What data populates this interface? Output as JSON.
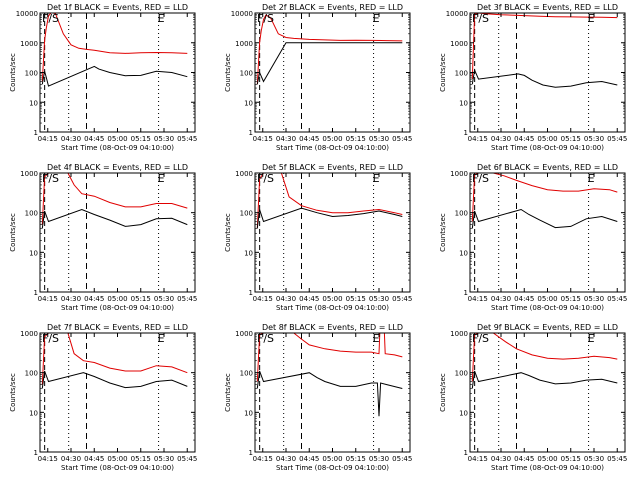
{
  "chart_data": [
    {
      "type": "line",
      "title": "Det 1f BLACK = Events, RED = LLD",
      "xlabel": "Start Time (08-Oct-09 04:10:00)",
      "ylabel": "Counts/sec",
      "marker_left": "F/S",
      "marker_right": "E",
      "ylim": [
        1,
        10000
      ],
      "y_scale": "log",
      "xlim": [
        "04:10:00",
        "05:50:00"
      ],
      "x_ticks": [
        "04:15",
        "04:30",
        "04:45",
        "05:00",
        "05:15",
        "05:30",
        "05:45"
      ],
      "y_ticks": [
        "1",
        "10",
        "100",
        "1000",
        "10000"
      ],
      "series": [
        {
          "color": "#e00000",
          "x": [
            "04:11:30",
            "04:13:00",
            "04:14:00",
            "04:15:30",
            "04:17:00",
            "04:18:30",
            "04:20:00",
            "04:25:00",
            "04:30:00",
            "04:35:00",
            "04:40:00",
            "04:45:00",
            "04:55:00",
            "05:05:00",
            "05:15:00",
            "05:25:00",
            "05:35:00",
            "05:45:00"
          ],
          "values": [
            50,
            1200,
            3000,
            8000,
            10000,
            10000,
            9500,
            2000,
            850,
            650,
            600,
            560,
            460,
            440,
            460,
            470,
            460,
            440
          ]
        },
        {
          "color": "#000000",
          "x": [
            "04:11:30",
            "04:13:00",
            "04:14:00",
            "04:15:30",
            "04:45:00",
            "04:48:00",
            "04:55:00",
            "05:05:00",
            "05:15:00",
            "05:25:00",
            "05:35:00",
            "05:45:00"
          ],
          "values": [
            40,
            110,
            70,
            35,
            160,
            130,
            100,
            78,
            80,
            110,
            100,
            72
          ]
        }
      ]
    },
    {
      "type": "line",
      "title": "Det 2f BLACK = Events, RED = LLD",
      "xlabel": "Start Time (08-Oct-09 04:10:00)",
      "ylabel": "Counts/sec",
      "marker_left": "F/S",
      "marker_right": "E",
      "ylim": [
        1,
        10000
      ],
      "y_scale": "log",
      "xlim": [
        "04:10:00",
        "05:50:00"
      ],
      "x_ticks": [
        "04:15",
        "04:30",
        "04:45",
        "05:00",
        "05:15",
        "05:30",
        "05:45"
      ],
      "y_ticks": [
        "1",
        "10",
        "100",
        "1000",
        "10000"
      ],
      "series": [
        {
          "color": "#e00000",
          "x": [
            "04:11:30",
            "04:13:00",
            "04:14:00",
            "04:15:30",
            "04:17:00",
            "04:20:00",
            "04:25:00",
            "04:30:00",
            "04:35:00",
            "04:45:00",
            "04:55:00",
            "05:05:00",
            "05:15:00",
            "05:25:00",
            "05:35:00",
            "05:45:00"
          ],
          "values": [
            40,
            1000,
            2500,
            6000,
            8500,
            7000,
            2000,
            1500,
            1400,
            1300,
            1250,
            1200,
            1220,
            1200,
            1180,
            1150
          ]
        },
        {
          "color": "#000000",
          "x": [
            "04:11:30",
            "04:13:00",
            "04:15:30",
            "04:30:00",
            "04:35:00",
            "04:45:00",
            "04:55:00",
            "05:05:00",
            "05:15:00",
            "05:25:00",
            "05:35:00",
            "05:45:00"
          ],
          "values": [
            40,
            100,
            50,
            1000,
            1000,
            1000,
            1000,
            1000,
            1000,
            1000,
            1000,
            1000
          ]
        }
      ]
    },
    {
      "type": "line",
      "title": "Det 3f BLACK = Events, RED = LLD",
      "xlabel": "Start Time (08-Oct-09 04:10:00)",
      "ylabel": "Counts/sec",
      "marker_left": "F/S",
      "marker_right": "E",
      "ylim": [
        1,
        10000
      ],
      "y_scale": "log",
      "xlim": [
        "04:10:00",
        "05:50:00"
      ],
      "x_ticks": [
        "04:15",
        "04:30",
        "04:45",
        "05:00",
        "05:15",
        "05:30",
        "05:45"
      ],
      "y_ticks": [
        "1",
        "10",
        "100",
        "1000",
        "10000"
      ],
      "series": [
        {
          "color": "#e00000",
          "x": [
            "04:11:30",
            "04:13:00",
            "04:15:30",
            "04:20:00",
            "04:30:00",
            "04:45:00",
            "04:55:00",
            "05:05:00",
            "05:15:00",
            "05:25:00",
            "05:35:00",
            "05:45:00"
          ],
          "values": [
            60,
            9000,
            10000,
            9500,
            8800,
            8200,
            7800,
            7500,
            7400,
            7300,
            7200,
            7000
          ]
        },
        {
          "color": "#000000",
          "x": [
            "04:11:30",
            "04:13:00",
            "04:15:30",
            "04:41:00",
            "04:45:00",
            "04:50:00",
            "04:57:00",
            "05:05:00",
            "05:15:00",
            "05:25:00",
            "05:35:00",
            "05:45:00"
          ],
          "values": [
            40,
            120,
            60,
            90,
            80,
            55,
            38,
            32,
            35,
            45,
            50,
            38
          ]
        }
      ]
    },
    {
      "type": "line",
      "title": "Det 4f BLACK = Events, RED = LLD",
      "xlabel": "Start Time (08-Oct-09 04:10:00)",
      "ylabel": "Counts/sec",
      "marker_left": "F/S",
      "marker_right": "E",
      "ylim": [
        1,
        1000
      ],
      "y_scale": "log",
      "xlim": [
        "04:10:00",
        "05:50:00"
      ],
      "x_ticks": [
        "04:15",
        "04:30",
        "04:45",
        "05:00",
        "05:15",
        "05:30",
        "05:45"
      ],
      "y_ticks": [
        "1",
        "10",
        "100",
        "1000"
      ],
      "series": [
        {
          "color": "#e00000",
          "x": [
            "04:11:30",
            "04:13:00",
            "04:15:30",
            "04:20:00",
            "04:28:00",
            "04:32:00",
            "04:37:00",
            "04:45:00",
            "04:55:00",
            "05:05:00",
            "05:15:00",
            "05:25:00",
            "05:35:00",
            "05:45:00"
          ],
          "values": [
            50,
            800,
            1000,
            1000,
            1000,
            500,
            300,
            260,
            180,
            140,
            140,
            170,
            170,
            130
          ]
        },
        {
          "color": "#000000",
          "x": [
            "04:11:30",
            "04:13:00",
            "04:15:30",
            "04:37:00",
            "04:45:00",
            "04:55:00",
            "05:05:00",
            "05:15:00",
            "05:25:00",
            "05:35:00",
            "05:45:00"
          ],
          "values": [
            40,
            110,
            60,
            120,
            90,
            65,
            45,
            50,
            70,
            72,
            50
          ]
        }
      ]
    },
    {
      "type": "line",
      "title": "Det 5f BLACK = Events, RED = LLD",
      "xlabel": "Start Time (08-Oct-09 04:10:00)",
      "ylabel": "Counts/sec",
      "marker_left": "F/S",
      "marker_right": "E",
      "ylim": [
        1,
        1000
      ],
      "y_scale": "log",
      "xlim": [
        "04:10:00",
        "05:50:00"
      ],
      "x_ticks": [
        "04:15",
        "04:30",
        "04:45",
        "05:00",
        "05:15",
        "05:30",
        "05:45"
      ],
      "y_ticks": [
        "1",
        "10",
        "100",
        "1000"
      ],
      "series": [
        {
          "color": "#e00000",
          "x": [
            "04:11:30",
            "04:13:00",
            "04:15:30",
            "04:20:00",
            "04:27:00",
            "04:32:00",
            "04:40:00",
            "04:50:00",
            "05:00:00",
            "05:10:00",
            "05:20:00",
            "05:30:00",
            "05:40:00",
            "05:45:00"
          ],
          "values": [
            40,
            700,
            1000,
            1000,
            1000,
            250,
            150,
            115,
            100,
            100,
            110,
            120,
            100,
            90
          ]
        },
        {
          "color": "#000000",
          "x": [
            "04:11:30",
            "04:13:00",
            "04:15:30",
            "04:40:00",
            "04:50:00",
            "05:00:00",
            "05:10:00",
            "05:20:00",
            "05:30:00",
            "05:40:00",
            "05:45:00"
          ],
          "values": [
            40,
            120,
            60,
            130,
            100,
            80,
            85,
            95,
            110,
            90,
            80
          ]
        }
      ]
    },
    {
      "type": "line",
      "title": "Det 6f BLACK = Events, RED = LLD",
      "xlabel": "Start Time (08-Oct-09 04:10:00)",
      "ylabel": "Counts/sec",
      "marker_left": "F/S",
      "marker_right": "E",
      "ylim": [
        1,
        1000
      ],
      "y_scale": "log",
      "xlim": [
        "04:10:00",
        "05:50:00"
      ],
      "x_ticks": [
        "04:15",
        "04:30",
        "04:45",
        "05:00",
        "05:15",
        "05:30",
        "05:45"
      ],
      "y_ticks": [
        "1",
        "10",
        "100",
        "1000"
      ],
      "series": [
        {
          "color": "#e00000",
          "x": [
            "04:11:30",
            "04:13:00",
            "04:15:30",
            "04:25:00",
            "04:32:00",
            "04:40:00",
            "04:50:00",
            "05:00:00",
            "05:10:00",
            "05:20:00",
            "05:30:00",
            "05:40:00",
            "05:45:00"
          ],
          "values": [
            60,
            900,
            1000,
            1000,
            850,
            650,
            480,
            380,
            350,
            350,
            400,
            380,
            330
          ]
        },
        {
          "color": "#000000",
          "x": [
            "04:11:30",
            "04:13:00",
            "04:15:30",
            "04:43:00",
            "04:48:00",
            "04:55:00",
            "05:05:00",
            "05:15:00",
            "05:25:00",
            "05:35:00",
            "05:45:00"
          ],
          "values": [
            40,
            110,
            60,
            120,
            90,
            65,
            42,
            45,
            70,
            80,
            60
          ]
        }
      ]
    },
    {
      "type": "line",
      "title": "Det 7f BLACK = Events, RED = LLD",
      "xlabel": "Start Time (08-Oct-09 04:10:00)",
      "ylabel": "Counts/sec",
      "marker_left": "F/S",
      "marker_right": "E",
      "ylim": [
        1,
        1000
      ],
      "y_scale": "log",
      "xlim": [
        "04:10:00",
        "05:50:00"
      ],
      "x_ticks": [
        "04:15",
        "04:30",
        "04:45",
        "05:00",
        "05:15",
        "05:30",
        "05:45"
      ],
      "y_ticks": [
        "1",
        "10",
        "100",
        "1000"
      ],
      "series": [
        {
          "color": "#e00000",
          "x": [
            "04:11:30",
            "04:13:00",
            "04:15:30",
            "04:20:00",
            "04:28:00",
            "04:32:00",
            "04:38:00",
            "04:45:00",
            "04:55:00",
            "05:05:00",
            "05:15:00",
            "05:25:00",
            "05:35:00",
            "05:45:00"
          ],
          "values": [
            50,
            800,
            1000,
            1000,
            1000,
            300,
            200,
            180,
            130,
            110,
            110,
            150,
            140,
            100
          ]
        },
        {
          "color": "#000000",
          "x": [
            "04:11:30",
            "04:13:00",
            "04:15:30",
            "04:38:00",
            "04:45:00",
            "04:55:00",
            "05:05:00",
            "05:15:00",
            "05:25:00",
            "05:35:00",
            "05:45:00"
          ],
          "values": [
            40,
            110,
            60,
            100,
            80,
            55,
            42,
            45,
            60,
            65,
            45
          ]
        }
      ]
    },
    {
      "type": "line",
      "title": "Det 8f BLACK = Events, RED = LLD",
      "xlabel": "Start Time (08-Oct-09 04:10:00)",
      "ylabel": "Counts/sec",
      "marker_left": "F/S",
      "marker_right": "E",
      "ylim": [
        1,
        1000
      ],
      "y_scale": "log",
      "xlim": [
        "04:10:00",
        "05:50:00"
      ],
      "x_ticks": [
        "04:15",
        "04:30",
        "04:45",
        "05:00",
        "05:15",
        "05:30",
        "05:45"
      ],
      "y_ticks": [
        "1",
        "10",
        "100",
        "1000"
      ],
      "series": [
        {
          "color": "#e00000",
          "x": [
            "04:11:30",
            "04:13:00",
            "04:15:30",
            "04:35:00",
            "04:40:00",
            "04:45:00",
            "04:55:00",
            "05:05:00",
            "05:15:00",
            "05:25:00",
            "05:30:00",
            "05:30:30",
            "05:33:30",
            "05:34:00",
            "05:40:00",
            "05:45:00"
          ],
          "values": [
            60,
            900,
            1000,
            1000,
            700,
            500,
            400,
            350,
            330,
            330,
            300,
            1000,
            1000,
            300,
            280,
            250
          ]
        },
        {
          "color": "#000000",
          "x": [
            "04:11:30",
            "04:13:00",
            "04:15:30",
            "04:45:00",
            "04:50:00",
            "04:55:00",
            "05:05:00",
            "05:15:00",
            "05:25:00",
            "05:29:00",
            "05:30:00",
            "05:31:00",
            "05:35:00",
            "05:45:00"
          ],
          "values": [
            40,
            110,
            60,
            100,
            75,
            60,
            45,
            45,
            55,
            55,
            8,
            55,
            50,
            40
          ]
        }
      ]
    },
    {
      "type": "line",
      "title": "Det 9f BLACK = Events, RED = LLD",
      "xlabel": "Start Time (08-Oct-09 04:10:00)",
      "ylabel": "Counts/sec",
      "marker_left": "F/S",
      "marker_right": "E",
      "ylim": [
        1,
        1000
      ],
      "y_scale": "log",
      "xlim": [
        "04:10:00",
        "05:50:00"
      ],
      "x_ticks": [
        "04:15",
        "04:30",
        "04:45",
        "05:00",
        "05:15",
        "05:30",
        "05:45"
      ],
      "y_ticks": [
        "1",
        "10",
        "100",
        "1000"
      ],
      "series": [
        {
          "color": "#e00000",
          "x": [
            "04:11:30",
            "04:13:00",
            "04:15:30",
            "04:25:00",
            "04:33:00",
            "04:40:00",
            "04:50:00",
            "05:00:00",
            "05:10:00",
            "05:20:00",
            "05:30:00",
            "05:40:00",
            "05:45:00"
          ],
          "values": [
            60,
            900,
            1000,
            1000,
            600,
            400,
            280,
            230,
            220,
            230,
            260,
            240,
            220
          ]
        },
        {
          "color": "#000000",
          "x": [
            "04:11:30",
            "04:13:00",
            "04:15:30",
            "04:43:00",
            "04:48:00",
            "04:55:00",
            "05:05:00",
            "05:15:00",
            "05:25:00",
            "05:35:00",
            "05:45:00"
          ],
          "values": [
            40,
            110,
            60,
            100,
            85,
            65,
            52,
            55,
            65,
            68,
            55
          ]
        }
      ]
    }
  ]
}
